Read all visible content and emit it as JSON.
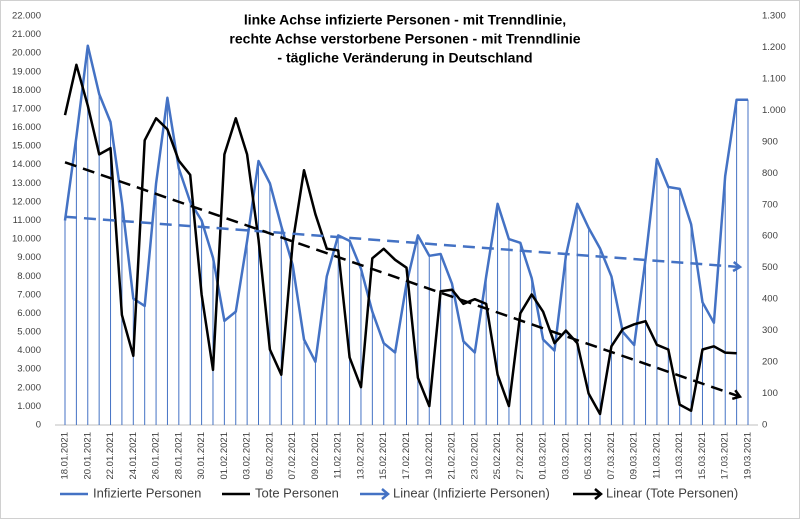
{
  "chart_data": {
    "type": "line",
    "title": [
      "linke Achse infizierte Personen - mit Trenndlinie,",
      "rechte Achse verstorbene Personen - mit Trenndlinie",
      "- tägliche Veränderung in Deutschland"
    ],
    "categories": [
      "18.01.2021",
      null,
      "20.01.2021",
      null,
      "22.01.2021",
      null,
      "24.01.2021",
      null,
      "26.01.2021",
      null,
      "28.01.2021",
      null,
      "30.01.2021",
      null,
      "01.02.2021",
      null,
      "03.02.2021",
      null,
      "05.02.2021",
      null,
      "07.02.2021",
      null,
      "09.02.2021",
      null,
      "11.02.2021",
      null,
      "13.02.2021",
      null,
      "15.02.2021",
      null,
      "17.02.2021",
      null,
      "19.02.2021",
      null,
      "21.02.2021",
      null,
      "23.02.2021",
      null,
      "25.02.2021",
      null,
      "27.02.2021",
      null,
      "01.03.2021",
      null,
      "03.03.2021",
      null,
      "05.03.2021",
      null,
      "07.03.2021",
      null,
      "09.03.2021",
      null,
      "11.03.2021",
      null,
      "13.03.2021",
      null,
      "15.03.2021",
      null,
      "17.03.2021",
      null,
      "19.03.2021"
    ],
    "series": [
      {
        "name": "Infizierte Personen",
        "color": "#4472c4",
        "axis": "y",
        "drop_lines": true,
        "values": [
          11000,
          15500,
          20400,
          17800,
          16300,
          12000,
          6800,
          6400,
          13000,
          17600,
          13800,
          12000,
          11000,
          9000,
          5600,
          6100,
          9900,
          14200,
          13000,
          10700,
          8600,
          4600,
          3400,
          8000,
          10200,
          9900,
          8400,
          6100,
          4400,
          3900,
          7600,
          10200,
          9100,
          9200,
          7600,
          4500,
          3900,
          8000,
          11900,
          10000,
          9800,
          7900,
          4600,
          4000,
          9100,
          11900,
          10600,
          9500,
          8000,
          5000,
          4300,
          8900,
          14300,
          12800,
          12700,
          10800,
          6600,
          5500,
          13400,
          17500,
          17500
        ]
      },
      {
        "name": "Tote Personen",
        "color": "#000000",
        "axis": "y2",
        "drop_lines": false,
        "values": [
          985,
          1145,
          1015,
          860,
          880,
          350,
          220,
          905,
          975,
          940,
          840,
          795,
          415,
          175,
          860,
          975,
          860,
          590,
          240,
          160,
          580,
          810,
          670,
          560,
          555,
          215,
          120,
          530,
          560,
          525,
          500,
          150,
          60,
          425,
          430,
          385,
          400,
          385,
          160,
          60,
          355,
          415,
          360,
          260,
          300,
          260,
          100,
          35,
          250,
          305,
          320,
          330,
          255,
          240,
          65,
          45,
          240,
          250,
          230,
          228,
          null
        ]
      }
    ],
    "trendlines": [
      {
        "name": "Linear (Infizierte Personen)",
        "color": "#4472c4",
        "axis": "y",
        "values": [
          11200,
          8500
        ]
      },
      {
        "name": "Linear (Tote Personen)",
        "color": "#000000",
        "axis": "y2",
        "values": [
          835,
          90
        ]
      }
    ],
    "ylim": [
      0,
      22000
    ],
    "yticks": [
      0,
      {
        "value": 1000,
        "label": "1.000"
      },
      {
        "value": 2000,
        "label": "2.000"
      },
      {
        "value": 3000,
        "label": "3.000"
      },
      {
        "value": 4000,
        "label": "4.000"
      },
      {
        "value": 5000,
        "label": "5.000"
      },
      {
        "value": 6000,
        "label": "6.000"
      },
      {
        "value": 7000,
        "label": "7.000"
      },
      {
        "value": 8000,
        "label": "8.000"
      },
      {
        "value": 9000,
        "label": "9.000"
      },
      {
        "value": 10000,
        "label": "10.000"
      },
      {
        "value": 11000,
        "label": "11.000"
      },
      {
        "value": 12000,
        "label": "12.000"
      },
      {
        "value": 13000,
        "label": "13.000"
      },
      {
        "value": 14000,
        "label": "14.000"
      },
      {
        "value": 15000,
        "label": "15.000"
      },
      {
        "value": 16000,
        "label": "16.000"
      },
      {
        "value": 17000,
        "label": "17.000"
      },
      {
        "value": 18000,
        "label": "18.000"
      },
      {
        "value": 19000,
        "label": "19.000"
      },
      {
        "value": 20000,
        "label": "20.000"
      },
      {
        "value": 21000,
        "label": "21.000"
      },
      {
        "value": 22000,
        "label": "22.000"
      }
    ],
    "y2lim": [
      0,
      1300
    ],
    "y2ticks": [
      0,
      100,
      200,
      300,
      400,
      500,
      600,
      700,
      800,
      900,
      {
        "value": 1000,
        "label": "1.000"
      },
      {
        "value": 1100,
        "label": "1.100"
      },
      {
        "value": 1200,
        "label": "1.200"
      },
      {
        "value": 1300,
        "label": "1.300"
      }
    ],
    "grid": false,
    "legend": "bottom"
  }
}
